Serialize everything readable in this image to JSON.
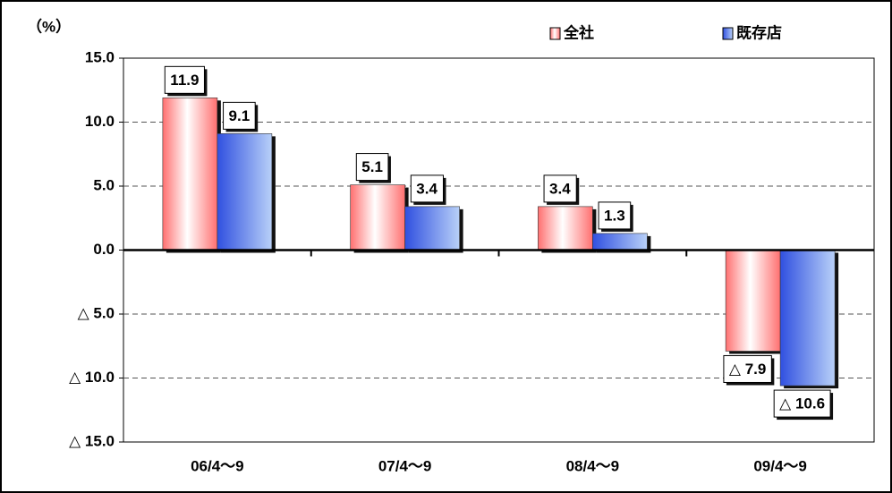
{
  "chart_data": {
    "type": "bar",
    "ylabel": "（%）",
    "categories": [
      "06/4～9",
      "07/4～9",
      "08/4～9",
      "09/4～9"
    ],
    "series": [
      {
        "name": "全社",
        "color": "#ff7070",
        "values": [
          11.9,
          5.1,
          3.4,
          -7.9
        ],
        "value_labels": [
          "11.9",
          "5.1",
          "3.4",
          "△ 7.9"
        ]
      },
      {
        "name": "既存店",
        "color": "#3050e0",
        "values": [
          9.1,
          3.4,
          1.3,
          -10.6
        ],
        "value_labels": [
          "9.1",
          "3.4",
          "1.3",
          "△ 10.6"
        ]
      }
    ],
    "ylim": [
      -15,
      15
    ],
    "yticks": [
      {
        "value": 15,
        "label": "15.0"
      },
      {
        "value": 10,
        "label": "10.0"
      },
      {
        "value": 5,
        "label": "5.0"
      },
      {
        "value": 0,
        "label": "0.0"
      },
      {
        "value": -5,
        "label": "△ 5.0"
      },
      {
        "value": -10,
        "label": "△ 10.0"
      },
      {
        "value": -15,
        "label": "△ 15.0"
      }
    ],
    "grid": true,
    "legend": "top-right"
  }
}
